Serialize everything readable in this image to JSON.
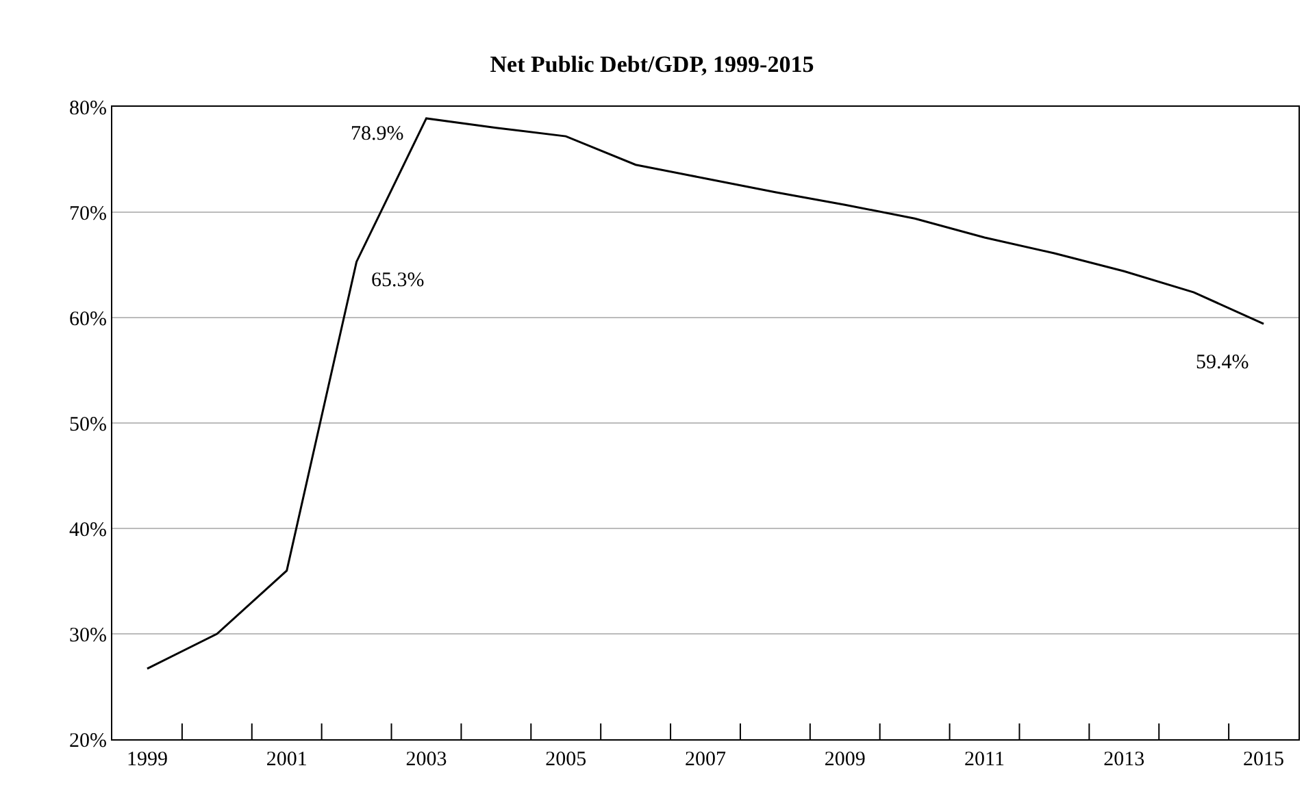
{
  "chart_data": {
    "type": "line",
    "title": "Net Public Debt/GDP, 1999-2015",
    "categories": [
      "1999",
      null,
      "2001",
      null,
      "2003",
      null,
      "2005",
      null,
      "2007",
      null,
      "2009",
      null,
      "2011",
      null,
      "2013",
      null,
      "2015"
    ],
    "series": [
      {
        "color": "#000000",
        "values": [
          26.7,
          30.0,
          36.0,
          65.3,
          78.9,
          78.0,
          77.2,
          74.5,
          73.2,
          71.9,
          70.7,
          69.4,
          67.6,
          66.1,
          64.4,
          62.4,
          59.4
        ],
        "value_labels": [
          null,
          null,
          null,
          "65.3%",
          "78.9%",
          null,
          null,
          null,
          null,
          null,
          null,
          null,
          null,
          null,
          null,
          null,
          "59.4%"
        ]
      }
    ],
    "ylim": [
      20,
      80
    ],
    "yticks": [
      {
        "value": 20,
        "label": "20%"
      },
      {
        "value": 30,
        "label": "30%"
      },
      {
        "value": 40,
        "label": "40%"
      },
      {
        "value": 50,
        "label": "50%"
      },
      {
        "value": 60,
        "label": "60%"
      },
      {
        "value": 70,
        "label": "70%"
      },
      {
        "value": 80,
        "label": "80%"
      }
    ],
    "grid": "y",
    "marker": "none",
    "line_style": "solid"
  }
}
